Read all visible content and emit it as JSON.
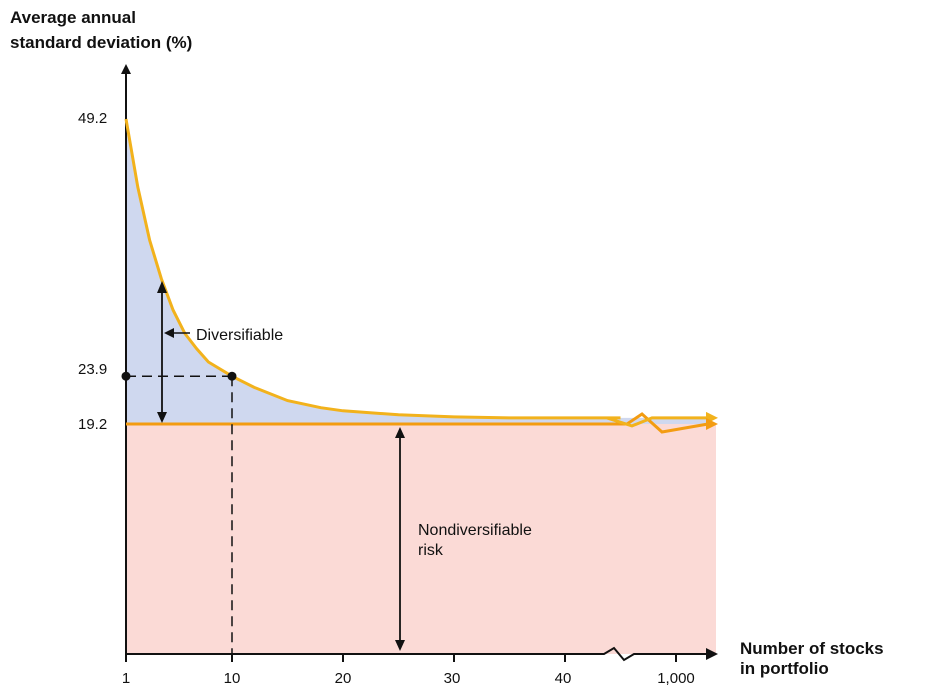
{
  "chart_data": {
    "type": "area",
    "ylabel_lines": [
      "Average annual",
      "standard deviation (%)"
    ],
    "xlabel_lines": [
      "Number of stocks",
      "in portfolio"
    ],
    "x_ticks": [
      "1",
      "10",
      "20",
      "30",
      "40",
      "1,000"
    ],
    "y_ticks": [
      "49.2",
      "23.9",
      "19.2"
    ],
    "y_tick_values": [
      49.2,
      23.9,
      19.2
    ],
    "ylim": [
      0,
      55
    ],
    "x_axis_break": true,
    "series": [
      {
        "x": [
          1,
          2,
          3,
          4,
          5,
          6,
          7,
          8,
          10,
          12,
          15,
          18,
          20,
          25,
          30,
          35,
          40,
          45
        ],
        "values": [
          49.2,
          42.5,
          37.3,
          33.5,
          30.4,
          28.1,
          26.6,
          25.3,
          23.9,
          22.8,
          21.5,
          20.8,
          20.5,
          20.1,
          19.9,
          19.8,
          19.8,
          19.8
        ]
      }
    ],
    "nondiversifiable_level": 19.2,
    "highlight_point": {
      "x": 10,
      "y": 23.9
    },
    "annotations": {
      "diversifiable": "Diversifiable",
      "nondiversifiable_lines": [
        "Nondiversifiable",
        "risk"
      ]
    },
    "colors": {
      "curve": "#f2b21c",
      "baseline": "#f39c12",
      "diversifiable_fill": "#cfd8ef",
      "nondiversifiable_fill": "#fbdad6",
      "axis": "#111111"
    }
  }
}
